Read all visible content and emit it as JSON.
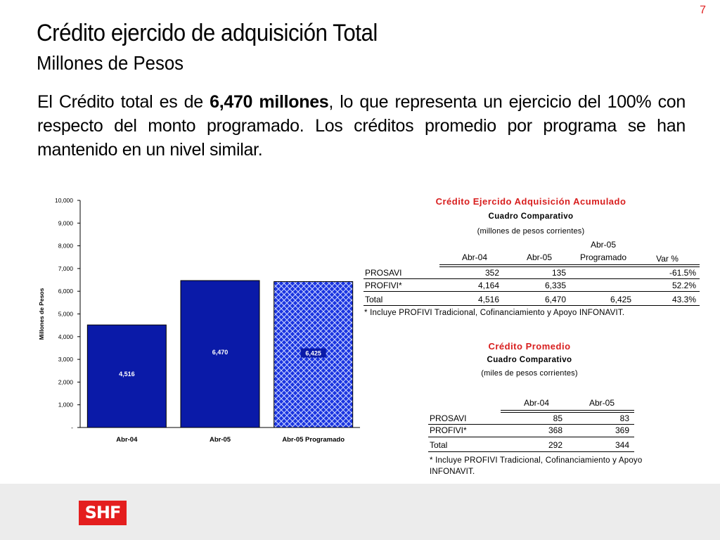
{
  "page_number": "7",
  "title": "Crédito ejercido de adquisición Total",
  "subtitle": "Millones de Pesos",
  "body": {
    "part1": "El Crédito total es de ",
    "bold": "6,470 millones",
    "part2": ", lo que representa un ejercicio del 100%  con respecto del monto programado. Los créditos promedio por programa se han mantenido en un nivel similar."
  },
  "chart_data": {
    "type": "bar",
    "categories": [
      "Abr-04",
      "Abr-05",
      "Abr-05 Programado"
    ],
    "values": [
      4516,
      6470,
      6425
    ],
    "data_labels": [
      "4,516",
      "6,470",
      "6,425"
    ],
    "ylabel": "Millones de Pesos",
    "ylim": [
      0,
      10000
    ],
    "yticks": [
      "-",
      "1,000",
      "2,000",
      "3,000",
      "4,000",
      "5,000",
      "6,000",
      "7,000",
      "8,000",
      "9,000",
      "10,000"
    ],
    "grid": false,
    "colors": [
      "#0a1aa8",
      "#0a1aa8",
      "#1830d8"
    ],
    "patterned": [
      false,
      false,
      true
    ]
  },
  "table1": {
    "title": "Crédito Ejercido Adquisición Acumulado",
    "subtitle": "Cuadro Comparativo",
    "note": "(millones de pesos corrientes)",
    "headers": [
      "Abr-04",
      "Abr-05",
      "Abr-05",
      "Programado",
      "Var %"
    ],
    "rows": [
      [
        "PROSAVI",
        "352",
        "135",
        "",
        "-61.5%"
      ],
      [
        "PROFIVI*",
        "4,164",
        "6,335",
        "",
        "52.2%"
      ],
      [
        "Total",
        "4,516",
        "6,470",
        "6,425",
        "43.3%"
      ]
    ],
    "footnote": "*  Incluye PROFIVI Tradicional, Cofinanciamiento y Apoyo INFONAVIT."
  },
  "table2": {
    "title": "Crédito Promedio",
    "subtitle": "Cuadro Comparativo",
    "note": "(miles de pesos corrientes)",
    "headers": [
      "Abr-04",
      "Abr-05"
    ],
    "rows": [
      [
        "PROSAVI",
        "85",
        "83"
      ],
      [
        "PROFIVI*",
        "368",
        "369"
      ],
      [
        "Total",
        "292",
        "344"
      ]
    ],
    "footnote": "*  Incluye PROFIVI Tradicional, Cofinanciamiento y Apoyo INFONAVIT."
  },
  "logo_text": "SHF",
  "colors": {
    "accent_red": "#d81e1e",
    "bar_blue": "#0a1aa8"
  }
}
